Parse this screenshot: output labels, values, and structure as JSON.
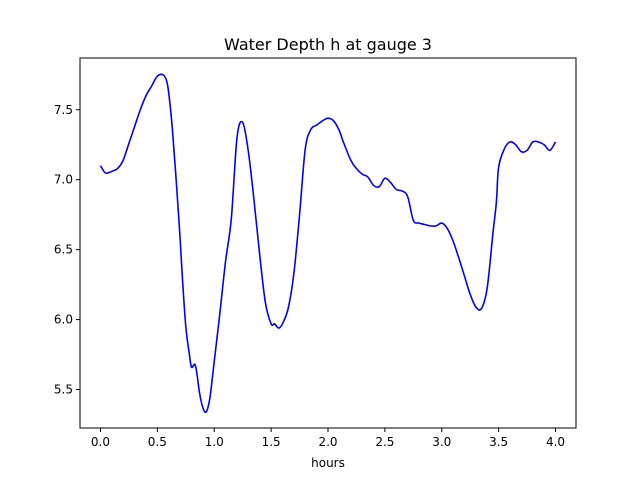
{
  "chart_data": {
    "type": "line",
    "title": "Water Depth h at gauge 3",
    "xlabel": "hours",
    "ylabel": "",
    "xlim": [
      -0.18,
      4.18
    ],
    "ylim": [
      5.225,
      7.87
    ],
    "xticks": [
      0.0,
      0.5,
      1.0,
      1.5,
      2.0,
      2.5,
      3.0,
      3.5,
      4.0
    ],
    "xtick_labels": [
      "0.0",
      "0.5",
      "1.0",
      "1.5",
      "2.0",
      "2.5",
      "3.0",
      "3.5",
      "4.0"
    ],
    "yticks": [
      5.5,
      6.0,
      6.5,
      7.0,
      7.5
    ],
    "ytick_labels": [
      "5.5",
      "6.0",
      "6.5",
      "7.0",
      "7.5"
    ],
    "grid": false,
    "series": [
      {
        "name": "h",
        "color": "#0000ff",
        "x": [
          0.0,
          0.04,
          0.07,
          0.1,
          0.15,
          0.2,
          0.25,
          0.3,
          0.35,
          0.4,
          0.45,
          0.5,
          0.55,
          0.58,
          0.6,
          0.63,
          0.66,
          0.7,
          0.72,
          0.75,
          0.78,
          0.8,
          0.83,
          0.85,
          0.87,
          0.9,
          0.93,
          0.96,
          0.98,
          1.0,
          1.05,
          1.1,
          1.15,
          1.2,
          1.25,
          1.3,
          1.35,
          1.4,
          1.45,
          1.5,
          1.53,
          1.55,
          1.57,
          1.6,
          1.65,
          1.7,
          1.75,
          1.8,
          1.85,
          1.9,
          1.95,
          2.0,
          2.05,
          2.1,
          2.13,
          2.2,
          2.25,
          2.3,
          2.35,
          2.4,
          2.45,
          2.5,
          2.55,
          2.6,
          2.65,
          2.7,
          2.75,
          2.8,
          2.85,
          2.9,
          2.95,
          3.0,
          3.05,
          3.1,
          3.15,
          3.2,
          3.25,
          3.3,
          3.35,
          3.4,
          3.45,
          3.48,
          3.5,
          3.55,
          3.6,
          3.65,
          3.7,
          3.75,
          3.8,
          3.85,
          3.9,
          3.95,
          4.0
        ],
        "y": [
          7.1,
          7.05,
          7.05,
          7.06,
          7.08,
          7.14,
          7.26,
          7.38,
          7.5,
          7.6,
          7.67,
          7.74,
          7.75,
          7.71,
          7.62,
          7.38,
          7.06,
          6.58,
          6.3,
          5.95,
          5.76,
          5.66,
          5.68,
          5.6,
          5.48,
          5.37,
          5.34,
          5.43,
          5.56,
          5.7,
          6.05,
          6.42,
          6.72,
          7.3,
          7.41,
          7.2,
          6.85,
          6.46,
          6.12,
          5.97,
          5.97,
          5.95,
          5.94,
          5.97,
          6.08,
          6.33,
          6.75,
          7.22,
          7.36,
          7.39,
          7.42,
          7.44,
          7.42,
          7.35,
          7.28,
          7.14,
          7.08,
          7.04,
          7.02,
          6.96,
          6.95,
          7.01,
          6.98,
          6.93,
          6.92,
          6.88,
          6.71,
          6.69,
          6.68,
          6.67,
          6.67,
          6.69,
          6.65,
          6.56,
          6.44,
          6.31,
          6.18,
          6.09,
          6.08,
          6.23,
          6.62,
          6.84,
          7.09,
          7.22,
          7.27,
          7.25,
          7.2,
          7.21,
          7.27,
          7.27,
          7.25,
          7.21,
          7.27
        ]
      }
    ]
  }
}
